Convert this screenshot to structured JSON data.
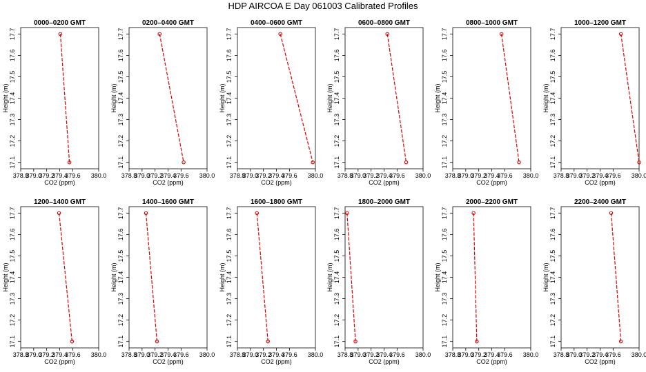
{
  "title": "HDP AIRCOA E  Day 061003  Calibrated Profiles",
  "colors": {
    "series": "#e00000",
    "axis": "#000000",
    "background": "#ffffff"
  },
  "chart_data": [
    {
      "type": "line",
      "title": "0000–0200 GMT",
      "xlabel": "CO2 (ppm)",
      "ylabel": "Height (m)",
      "xlim": [
        378.8,
        380.0
      ],
      "ylim": [
        17.07,
        17.73
      ],
      "xticks": [
        "378.8",
        "379.0",
        "379.2",
        "379.4",
        "379.6",
        "380.0"
      ],
      "yticks": [
        "17.1",
        "17.2",
        "17.3",
        "17.4",
        "17.5",
        "17.6",
        "17.7"
      ],
      "points": [
        {
          "co2": 379.41,
          "height": 17.7
        },
        {
          "co2": 379.55,
          "height": 17.1
        }
      ]
    },
    {
      "type": "line",
      "title": "0200–0400 GMT",
      "xlabel": "CO2 (ppm)",
      "ylabel": "Height (m)",
      "xlim": [
        378.8,
        380.0
      ],
      "ylim": [
        17.07,
        17.73
      ],
      "xticks": [
        "378.8",
        "379.0",
        "379.2",
        "379.4",
        "379.6",
        "380.0"
      ],
      "yticks": [
        "17.1",
        "17.2",
        "17.3",
        "17.4",
        "17.5",
        "17.6",
        "17.7"
      ],
      "points": [
        {
          "co2": 379.27,
          "height": 17.7
        },
        {
          "co2": 379.64,
          "height": 17.1
        }
      ]
    },
    {
      "type": "line",
      "title": "0400–0600 GMT",
      "xlabel": "CO2 (ppm)",
      "ylabel": "Height (m)",
      "xlim": [
        378.8,
        380.0
      ],
      "ylim": [
        17.07,
        17.73
      ],
      "xticks": [
        "378.8",
        "379.0",
        "379.2",
        "379.4",
        "379.6",
        "380.0"
      ],
      "yticks": [
        "17.1",
        "17.2",
        "17.3",
        "17.4",
        "17.5",
        "17.6",
        "17.7"
      ],
      "points": [
        {
          "co2": 379.46,
          "height": 17.7
        },
        {
          "co2": 379.96,
          "height": 17.1
        }
      ]
    },
    {
      "type": "line",
      "title": "0600–0800 GMT",
      "xlabel": "CO2 (ppm)",
      "ylabel": "Height (m)",
      "xlim": [
        378.8,
        380.0
      ],
      "ylim": [
        17.07,
        17.73
      ],
      "xticks": [
        "378.8",
        "379.0",
        "379.2",
        "379.4",
        "379.6",
        "380.0"
      ],
      "yticks": [
        "17.1",
        "17.2",
        "17.3",
        "17.4",
        "17.5",
        "17.6",
        "17.7"
      ],
      "points": [
        {
          "co2": 379.45,
          "height": 17.7
        },
        {
          "co2": 379.74,
          "height": 17.1
        }
      ]
    },
    {
      "type": "line",
      "title": "0800–1000 GMT",
      "xlabel": "CO2 (ppm)",
      "ylabel": "Height (m)",
      "xlim": [
        378.8,
        380.0
      ],
      "ylim": [
        17.07,
        17.73
      ],
      "xticks": [
        "378.8",
        "379.0",
        "379.2",
        "379.4",
        "379.6",
        "380.0"
      ],
      "yticks": [
        "17.1",
        "17.2",
        "17.3",
        "17.4",
        "17.5",
        "17.6",
        "17.7"
      ],
      "points": [
        {
          "co2": 379.55,
          "height": 17.7
        },
        {
          "co2": 379.82,
          "height": 17.1
        }
      ]
    },
    {
      "type": "line",
      "title": "1000–1200 GMT",
      "xlabel": "CO2 (ppm)",
      "ylabel": "Height (m)",
      "xlim": [
        378.8,
        380.0
      ],
      "ylim": [
        17.07,
        17.73
      ],
      "xticks": [
        "378.8",
        "379.0",
        "379.2",
        "379.4",
        "379.6",
        "380.0"
      ],
      "yticks": [
        "17.1",
        "17.2",
        "17.3",
        "17.4",
        "17.5",
        "17.6",
        "17.7"
      ],
      "points": [
        {
          "co2": 379.72,
          "height": 17.7
        },
        {
          "co2": 380.0,
          "height": 17.1
        }
      ]
    },
    {
      "type": "line",
      "title": "1200–1400 GMT",
      "xlabel": "CO2 (ppm)",
      "ylabel": "Height (m)",
      "xlim": [
        378.8,
        380.0
      ],
      "ylim": [
        17.07,
        17.73
      ],
      "xticks": [
        "378.8",
        "379.0",
        "379.2",
        "379.4",
        "379.6",
        "380.0"
      ],
      "yticks": [
        "17.1",
        "17.2",
        "17.3",
        "17.4",
        "17.5",
        "17.6",
        "17.7"
      ],
      "points": [
        {
          "co2": 379.39,
          "height": 17.7
        },
        {
          "co2": 379.59,
          "height": 17.1
        }
      ]
    },
    {
      "type": "line",
      "title": "1400–1600 GMT",
      "xlabel": "CO2 (ppm)",
      "ylabel": "Height (m)",
      "xlim": [
        378.8,
        380.0
      ],
      "ylim": [
        17.07,
        17.73
      ],
      "xticks": [
        "378.8",
        "379.0",
        "379.2",
        "379.4",
        "379.6",
        "380.0"
      ],
      "yticks": [
        "17.1",
        "17.2",
        "17.3",
        "17.4",
        "17.5",
        "17.6",
        "17.7"
      ],
      "points": [
        {
          "co2": 379.06,
          "height": 17.7
        },
        {
          "co2": 379.23,
          "height": 17.1
        }
      ]
    },
    {
      "type": "line",
      "title": "1600–1800 GMT",
      "xlabel": "CO2 (ppm)",
      "ylabel": "Height (m)",
      "xlim": [
        378.8,
        380.0
      ],
      "ylim": [
        17.07,
        17.73
      ],
      "xticks": [
        "378.8",
        "379.0",
        "379.2",
        "379.4",
        "379.6",
        "380.0"
      ],
      "yticks": [
        "17.1",
        "17.2",
        "17.3",
        "17.4",
        "17.5",
        "17.6",
        "17.7"
      ],
      "points": [
        {
          "co2": 379.1,
          "height": 17.7
        },
        {
          "co2": 379.27,
          "height": 17.1
        }
      ]
    },
    {
      "type": "line",
      "title": "1800–2000 GMT",
      "xlabel": "CO2 (ppm)",
      "ylabel": "Height (m)",
      "xlim": [
        378.8,
        380.0
      ],
      "ylim": [
        17.07,
        17.73
      ],
      "xticks": [
        "378.8",
        "379.0",
        "379.2",
        "379.4",
        "379.6",
        "380.0"
      ],
      "yticks": [
        "17.1",
        "17.2",
        "17.3",
        "17.4",
        "17.5",
        "17.6",
        "17.7"
      ],
      "points": [
        {
          "co2": 378.83,
          "height": 17.7
        },
        {
          "co2": 378.96,
          "height": 17.1
        }
      ]
    },
    {
      "type": "line",
      "title": "2000–2200 GMT",
      "xlabel": "CO2 (ppm)",
      "ylabel": "Height (m)",
      "xlim": [
        378.8,
        380.0
      ],
      "ylim": [
        17.07,
        17.73
      ],
      "xticks": [
        "378.8",
        "379.0",
        "379.2",
        "379.4",
        "379.6",
        "380.0"
      ],
      "yticks": [
        "17.1",
        "17.2",
        "17.3",
        "17.4",
        "17.5",
        "17.6",
        "17.7"
      ],
      "points": [
        {
          "co2": 379.12,
          "height": 17.7
        },
        {
          "co2": 379.17,
          "height": 17.1
        }
      ]
    },
    {
      "type": "line",
      "title": "2200–2400 GMT",
      "xlabel": "CO2 (ppm)",
      "ylabel": "Height (m)",
      "xlim": [
        378.8,
        380.0
      ],
      "ylim": [
        17.07,
        17.73
      ],
      "xticks": [
        "378.8",
        "379.0",
        "379.2",
        "379.4",
        "379.6",
        "380.0"
      ],
      "yticks": [
        "17.1",
        "17.2",
        "17.3",
        "17.4",
        "17.5",
        "17.6",
        "17.7"
      ],
      "points": [
        {
          "co2": 379.57,
          "height": 17.7
        },
        {
          "co2": 379.72,
          "height": 17.1
        }
      ]
    }
  ]
}
